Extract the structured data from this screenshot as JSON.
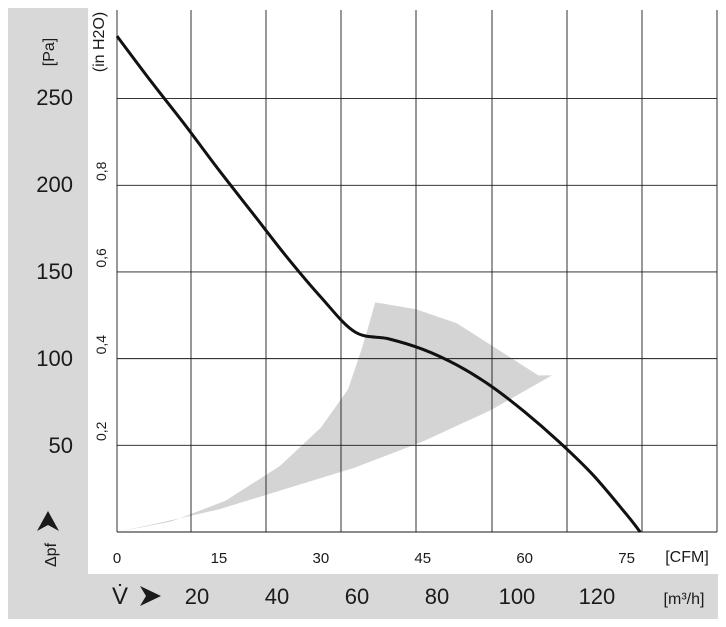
{
  "chart_data": {
    "type": "line",
    "x_axis_primary": {
      "label": "[CFM]",
      "ticks": [
        "0",
        "15",
        "30",
        "45",
        "60",
        "75"
      ],
      "tick_values": [
        0,
        15,
        30,
        45,
        60,
        75
      ],
      "range": [
        0,
        88.3
      ]
    },
    "x_axis_secondary": {
      "label": "[m³/h]",
      "symbol": "V̇",
      "ticks": [
        "20",
        "40",
        "60",
        "80",
        "100",
        "120"
      ],
      "tick_values": [
        20,
        40,
        60,
        80,
        100,
        120
      ],
      "range": [
        0,
        150
      ]
    },
    "y_axis_primary": {
      "label": "[Pa]",
      "symbol": "Δpf",
      "ticks": [
        "50",
        "100",
        "150",
        "200",
        "250"
      ],
      "tick_values": [
        50,
        100,
        150,
        200,
        250
      ],
      "range": [
        0,
        300
      ]
    },
    "y_axis_secondary": {
      "label": "(in H2O)",
      "ticks": [
        "0,2",
        "0,4",
        "0,6",
        "0,8"
      ],
      "tick_values": [
        0.2,
        0.4,
        0.6,
        0.8
      ]
    },
    "grid": true,
    "series": [
      {
        "x_cfm": [
          0,
          5,
          10,
          15,
          20,
          25,
          30,
          35,
          40,
          45,
          50,
          55,
          60,
          65,
          70,
          75,
          77
        ],
        "y_pa": [
          285,
          259,
          234,
          208,
          183,
          158,
          135,
          115,
          111,
          105,
          96,
          84,
          69,
          52,
          33,
          10,
          0
        ]
      }
    ],
    "operating_region": {
      "color": "#d4d4d4",
      "upper_x_cfm": [
        0,
        8,
        16,
        24,
        30,
        34,
        36,
        37,
        38,
        44,
        50,
        56,
        62,
        64
      ],
      "upper_y_pa": [
        0,
        6,
        18,
        38,
        60,
        82,
        105,
        118,
        132,
        128,
        120,
        105,
        90,
        90
      ],
      "lower_x_cfm": [
        64,
        55,
        45,
        35,
        25,
        15,
        6,
        0
      ],
      "lower_y_pa": [
        90,
        70,
        52,
        37,
        25,
        13,
        5,
        0
      ]
    }
  }
}
